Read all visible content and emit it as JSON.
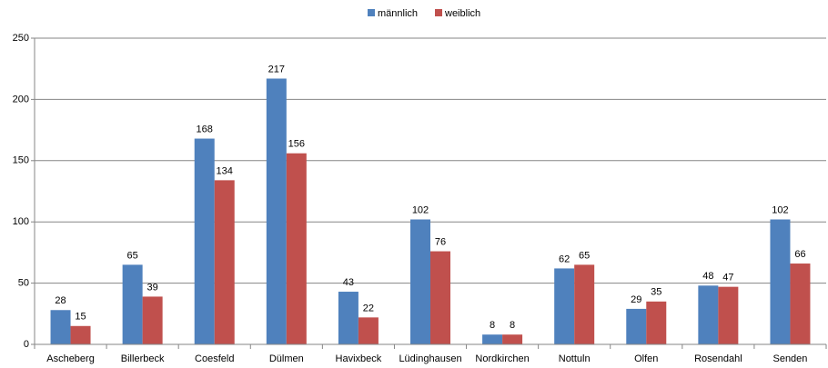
{
  "chart_data": {
    "type": "bar",
    "categories": [
      "Ascheberg",
      "Billerbeck",
      "Coesfeld",
      "Dülmen",
      "Havixbeck",
      "Lüdinghausen",
      "Nordkirchen",
      "Nottuln",
      "Olfen",
      "Rosendahl",
      "Senden"
    ],
    "series": [
      {
        "name": "männlich",
        "color": "#4f81bd",
        "values": [
          28,
          65,
          168,
          217,
          43,
          102,
          8,
          62,
          29,
          48,
          102
        ]
      },
      {
        "name": "weiblich",
        "color": "#c0504d",
        "values": [
          15,
          39,
          134,
          156,
          22,
          76,
          8,
          65,
          35,
          47,
          66
        ]
      }
    ],
    "ylim": [
      0,
      250
    ],
    "yticks": [
      0,
      50,
      100,
      150,
      200,
      250
    ],
    "grid": true,
    "legend": "top"
  }
}
